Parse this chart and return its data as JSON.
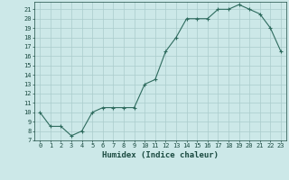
{
  "x": [
    0,
    1,
    2,
    3,
    4,
    5,
    6,
    7,
    8,
    9,
    10,
    11,
    12,
    13,
    14,
    15,
    16,
    17,
    18,
    19,
    20,
    21,
    22,
    23
  ],
  "y": [
    10,
    8.5,
    8.5,
    7.5,
    8,
    10,
    10.5,
    10.5,
    10.5,
    10.5,
    13,
    13.5,
    16.5,
    18,
    20,
    20,
    20,
    21,
    21,
    21.5,
    21,
    20.5,
    19,
    16.5
  ],
  "line_color": "#2e6b5e",
  "marker": "+",
  "marker_size": 3,
  "background_color": "#cce8e8",
  "grid_color": "#aacccc",
  "xlabel": "Humidex (Indice chaleur)",
  "xlim": [
    -0.5,
    23.5
  ],
  "ylim": [
    7,
    21.8
  ],
  "yticks": [
    7,
    8,
    9,
    10,
    11,
    12,
    13,
    14,
    15,
    16,
    17,
    18,
    19,
    20,
    21
  ],
  "xticks": [
    0,
    1,
    2,
    3,
    4,
    5,
    6,
    7,
    8,
    9,
    10,
    11,
    12,
    13,
    14,
    15,
    16,
    17,
    18,
    19,
    20,
    21,
    22,
    23
  ],
  "tick_fontsize": 5,
  "xlabel_fontsize": 6.5,
  "tick_color": "#1a4a40",
  "label_color": "#1a4a40",
  "spine_color": "#1a4a40"
}
